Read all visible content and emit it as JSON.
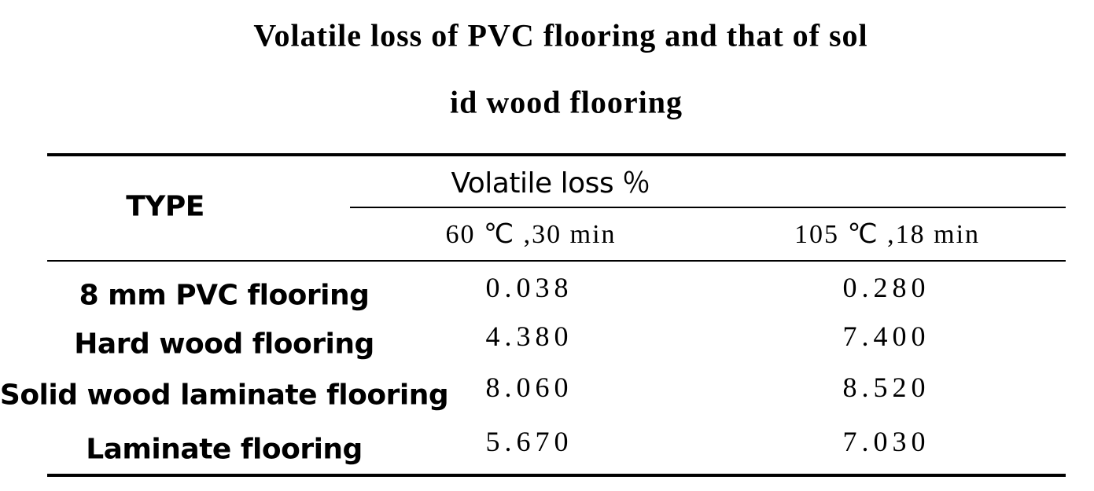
{
  "title": {
    "lines": [
      "Volatile loss of PVC flooring and that of sol",
      "id wood flooring"
    ]
  },
  "table": {
    "header": {
      "type": "TYPE",
      "group": "Volatile loss ％",
      "columns": [
        "60 ℃ ,30 min",
        "105 ℃ ,18 min"
      ]
    },
    "rows": [
      [
        "8 mm PVC flooring",
        "0.038",
        "0.280"
      ],
      [
        "Hard wood flooring",
        "4.380",
        "7.400"
      ],
      [
        "Solid wood laminate flooring",
        "8.060",
        "8.520"
      ],
      [
        "Laminate flooring",
        "5.670",
        "7.030"
      ]
    ]
  }
}
